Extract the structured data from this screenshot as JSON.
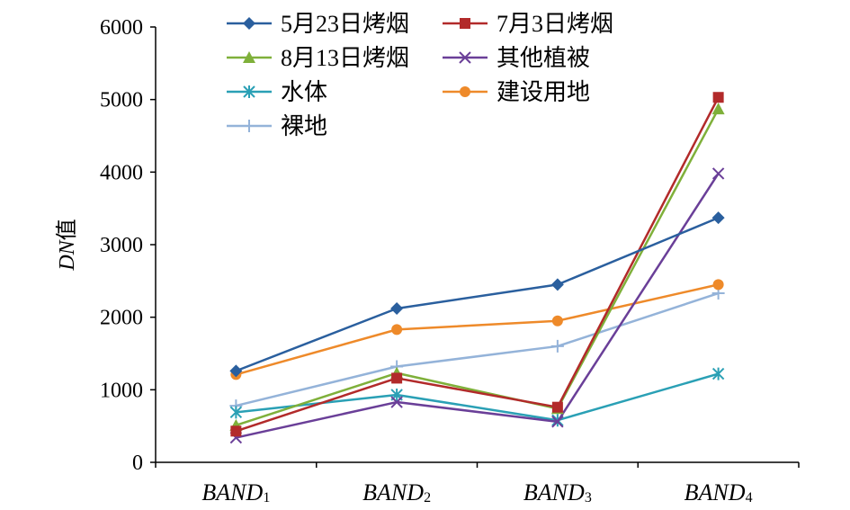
{
  "chart_data": {
    "type": "line",
    "categories": [
      {
        "main": "BAND",
        "sub": "1"
      },
      {
        "main": "BAND",
        "sub": "2"
      },
      {
        "main": "BAND",
        "sub": "3"
      },
      {
        "main": "BAND",
        "sub": "4"
      }
    ],
    "ylabel": {
      "italic": "DN",
      "rest": "值"
    },
    "xlabel": "",
    "ylim": [
      0,
      6000
    ],
    "yticks": [
      0,
      1000,
      2000,
      3000,
      4000,
      5000,
      6000
    ],
    "legend_position": "top",
    "series": [
      {
        "name": "5月23日烤烟",
        "color": "#2a5f9e",
        "marker": "diamond",
        "values": [
          1260,
          2120,
          2450,
          3370
        ]
      },
      {
        "name": "7月3日烤烟",
        "color": "#b22a2a",
        "marker": "square",
        "values": [
          430,
          1160,
          760,
          5030
        ]
      },
      {
        "name": "8月13日烤烟",
        "color": "#7fb03a",
        "marker": "triangle",
        "values": [
          510,
          1230,
          740,
          4870
        ]
      },
      {
        "name": "其他植被",
        "color": "#6a3f98",
        "marker": "x",
        "values": [
          340,
          830,
          560,
          3980
        ]
      },
      {
        "name": "水体",
        "color": "#2aa0b5",
        "marker": "star",
        "values": [
          690,
          930,
          580,
          1220
        ]
      },
      {
        "name": "建设用地",
        "color": "#ee8a2a",
        "marker": "circle",
        "values": [
          1210,
          1830,
          1950,
          2450
        ]
      },
      {
        "name": "裸地",
        "color": "#94b3d9",
        "marker": "plus",
        "values": [
          780,
          1320,
          1600,
          2330
        ]
      }
    ]
  }
}
